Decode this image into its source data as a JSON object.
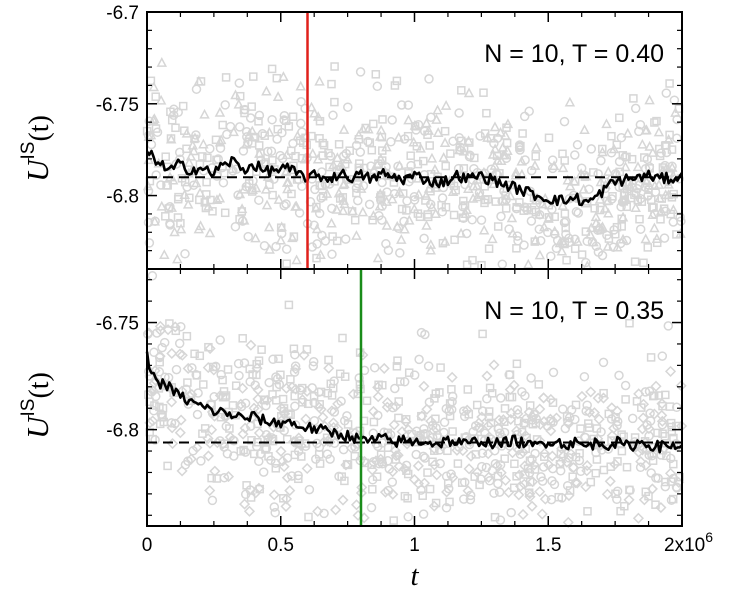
{
  "chart_data": [
    {
      "type": "line",
      "annotation": "N = 10, T = 0.40",
      "ylabel": "U",
      "ylabel_superscript": "IS",
      "ylabel_argument": "(t)",
      "xlim": [
        0,
        2000000
      ],
      "ylim": [
        -6.84,
        -6.7
      ],
      "yticks": [
        -6.7,
        -6.75,
        -6.8
      ],
      "ytick_labels": [
        "-6.7",
        "-6.75",
        "-6.8"
      ],
      "reference_level": -6.79,
      "vertical_marker": {
        "x": 600000,
        "color": "#e0201b"
      },
      "scatter_color": "#d6d6d6",
      "line_color": "#000000",
      "mean_trace": [
        {
          "x": 0,
          "y": -6.777
        },
        {
          "x": 40000,
          "y": -6.781
        },
        {
          "x": 80000,
          "y": -6.787
        },
        {
          "x": 120000,
          "y": -6.783
        },
        {
          "x": 160000,
          "y": -6.786
        },
        {
          "x": 200000,
          "y": -6.785
        },
        {
          "x": 240000,
          "y": -6.788
        },
        {
          "x": 280000,
          "y": -6.784
        },
        {
          "x": 320000,
          "y": -6.781
        },
        {
          "x": 360000,
          "y": -6.786
        },
        {
          "x": 400000,
          "y": -6.783
        },
        {
          "x": 440000,
          "y": -6.787
        },
        {
          "x": 480000,
          "y": -6.786
        },
        {
          "x": 520000,
          "y": -6.785
        },
        {
          "x": 560000,
          "y": -6.788
        },
        {
          "x": 600000,
          "y": -6.79
        },
        {
          "x": 640000,
          "y": -6.789
        },
        {
          "x": 680000,
          "y": -6.791
        },
        {
          "x": 720000,
          "y": -6.788
        },
        {
          "x": 760000,
          "y": -6.79
        },
        {
          "x": 800000,
          "y": -6.789
        },
        {
          "x": 840000,
          "y": -6.791
        },
        {
          "x": 880000,
          "y": -6.788
        },
        {
          "x": 920000,
          "y": -6.79
        },
        {
          "x": 960000,
          "y": -6.791
        },
        {
          "x": 1000000,
          "y": -6.789
        },
        {
          "x": 1040000,
          "y": -6.791
        },
        {
          "x": 1080000,
          "y": -6.793
        },
        {
          "x": 1120000,
          "y": -6.792
        },
        {
          "x": 1160000,
          "y": -6.789
        },
        {
          "x": 1200000,
          "y": -6.791
        },
        {
          "x": 1240000,
          "y": -6.789
        },
        {
          "x": 1280000,
          "y": -6.791
        },
        {
          "x": 1320000,
          "y": -6.793
        },
        {
          "x": 1360000,
          "y": -6.795
        },
        {
          "x": 1400000,
          "y": -6.797
        },
        {
          "x": 1440000,
          "y": -6.799
        },
        {
          "x": 1480000,
          "y": -6.801
        },
        {
          "x": 1520000,
          "y": -6.802
        },
        {
          "x": 1560000,
          "y": -6.803
        },
        {
          "x": 1600000,
          "y": -6.801
        },
        {
          "x": 1640000,
          "y": -6.804
        },
        {
          "x": 1680000,
          "y": -6.801
        },
        {
          "x": 1720000,
          "y": -6.795
        },
        {
          "x": 1760000,
          "y": -6.792
        },
        {
          "x": 1800000,
          "y": -6.791
        },
        {
          "x": 1840000,
          "y": -6.79
        },
        {
          "x": 1880000,
          "y": -6.789
        },
        {
          "x": 1920000,
          "y": -6.791
        },
        {
          "x": 2000000,
          "y": -6.79
        }
      ]
    },
    {
      "type": "line",
      "annotation": "N = 10, T = 0.35",
      "ylabel": "U",
      "ylabel_superscript": "IS",
      "ylabel_argument": "(t)",
      "xlabel": "t",
      "xlim": [
        0,
        2000000
      ],
      "xticks": [
        0,
        500000,
        1000000,
        1500000,
        2000000
      ],
      "xtick_labels": [
        "0",
        "0.5",
        "1",
        "1.5",
        "2x10"
      ],
      "xtick_exponent": "6",
      "ylim": [
        -6.845,
        -6.725
      ],
      "yticks": [
        -6.75,
        -6.8
      ],
      "ytick_labels": [
        "-6.75",
        "-6.8"
      ],
      "reference_level": -6.806,
      "vertical_marker": {
        "x": 800000,
        "color": "#1a8c1a"
      },
      "scatter_color": "#d6d6d6",
      "line_color": "#000000",
      "mean_trace": [
        {
          "x": 0,
          "y": -6.766
        },
        {
          "x": 30000,
          "y": -6.777
        },
        {
          "x": 80000,
          "y": -6.78
        },
        {
          "x": 120000,
          "y": -6.784
        },
        {
          "x": 160000,
          "y": -6.787
        },
        {
          "x": 200000,
          "y": -6.789
        },
        {
          "x": 240000,
          "y": -6.791
        },
        {
          "x": 280000,
          "y": -6.792
        },
        {
          "x": 320000,
          "y": -6.793
        },
        {
          "x": 360000,
          "y": -6.795
        },
        {
          "x": 400000,
          "y": -6.794
        },
        {
          "x": 440000,
          "y": -6.796
        },
        {
          "x": 480000,
          "y": -6.797
        },
        {
          "x": 520000,
          "y": -6.796
        },
        {
          "x": 560000,
          "y": -6.798
        },
        {
          "x": 600000,
          "y": -6.799
        },
        {
          "x": 640000,
          "y": -6.8
        },
        {
          "x": 680000,
          "y": -6.801
        },
        {
          "x": 720000,
          "y": -6.802
        },
        {
          "x": 760000,
          "y": -6.803
        },
        {
          "x": 800000,
          "y": -6.805
        },
        {
          "x": 840000,
          "y": -6.805
        },
        {
          "x": 880000,
          "y": -6.804
        },
        {
          "x": 920000,
          "y": -6.806
        },
        {
          "x": 960000,
          "y": -6.805
        },
        {
          "x": 1000000,
          "y": -6.806
        },
        {
          "x": 1040000,
          "y": -6.805
        },
        {
          "x": 1080000,
          "y": -6.807
        },
        {
          "x": 1120000,
          "y": -6.805
        },
        {
          "x": 1160000,
          "y": -6.806
        },
        {
          "x": 1200000,
          "y": -6.807
        },
        {
          "x": 1240000,
          "y": -6.805
        },
        {
          "x": 1280000,
          "y": -6.806
        },
        {
          "x": 1320000,
          "y": -6.807
        },
        {
          "x": 1360000,
          "y": -6.805
        },
        {
          "x": 1400000,
          "y": -6.806
        },
        {
          "x": 1440000,
          "y": -6.808
        },
        {
          "x": 1480000,
          "y": -6.806
        },
        {
          "x": 1520000,
          "y": -6.805
        },
        {
          "x": 1560000,
          "y": -6.807
        },
        {
          "x": 1600000,
          "y": -6.806
        },
        {
          "x": 1640000,
          "y": -6.808
        },
        {
          "x": 1680000,
          "y": -6.806
        },
        {
          "x": 1720000,
          "y": -6.807
        },
        {
          "x": 1760000,
          "y": -6.806
        },
        {
          "x": 1800000,
          "y": -6.808
        },
        {
          "x": 1840000,
          "y": -6.806
        },
        {
          "x": 1880000,
          "y": -6.807
        },
        {
          "x": 1920000,
          "y": -6.808
        },
        {
          "x": 2000000,
          "y": -6.807
        }
      ]
    }
  ]
}
